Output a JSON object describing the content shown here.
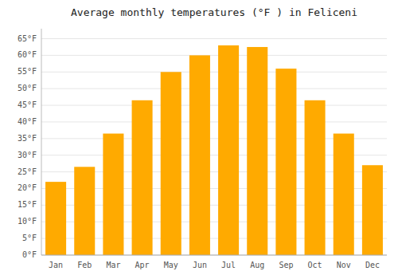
{
  "chart_data": {
    "type": "bar",
    "title": "Average monthly temperatures (°F ) in Feliceni",
    "categories": [
      "Jan",
      "Feb",
      "Mar",
      "Apr",
      "May",
      "Jun",
      "Jul",
      "Aug",
      "Sep",
      "Oct",
      "Nov",
      "Dec"
    ],
    "values": [
      22,
      26.5,
      36.5,
      46.5,
      55,
      60,
      63,
      62.5,
      56,
      46.5,
      36.5,
      27
    ],
    "color": "#FFAA00",
    "ylim": [
      0,
      68
    ],
    "yticks": [
      {
        "value": 0,
        "label": "0°F"
      },
      {
        "value": 5,
        "label": "5°F"
      },
      {
        "value": 10,
        "label": "10°F"
      },
      {
        "value": 15,
        "label": "15°F"
      },
      {
        "value": 20,
        "label": "20°F"
      },
      {
        "value": 25,
        "label": "25°F"
      },
      {
        "value": 30,
        "label": "30°F"
      },
      {
        "value": 35,
        "label": "35°F"
      },
      {
        "value": 40,
        "label": "40°F"
      },
      {
        "value": 45,
        "label": "45°F"
      },
      {
        "value": 50,
        "label": "50°F"
      },
      {
        "value": 55,
        "label": "55°F"
      },
      {
        "value": 60,
        "label": "60°F"
      },
      {
        "value": 65,
        "label": "65°F"
      }
    ],
    "grid": true
  }
}
